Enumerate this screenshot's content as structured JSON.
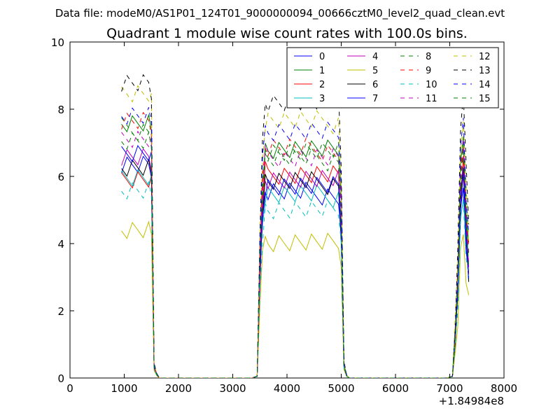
{
  "chart_data": {
    "type": "line",
    "suptitle": "Data file: modeM0/AS1P01_124T01_9000000094_00666cztM0_level2_quad_clean.evt",
    "title": "Quadrant 1 module wise count rates with 100.0s bins.",
    "xlabel": "",
    "ylabel": "",
    "x_offset_label": "+1.84984e8",
    "xlim": [
      0,
      8000
    ],
    "ylim": [
      0,
      10
    ],
    "xticks": [
      0,
      1000,
      2000,
      3000,
      4000,
      5000,
      6000,
      7000,
      8000
    ],
    "yticks": [
      0,
      2,
      4,
      6,
      8,
      10
    ],
    "grid": false,
    "legend_position": "top-right",
    "legend_columns": 4,
    "base_x": [
      950,
      1050,
      1150,
      1250,
      1350,
      1450,
      1500,
      1550,
      1600,
      1650,
      1750,
      1850,
      1950,
      2050,
      2150,
      2250,
      2350,
      2450,
      2550,
      2650,
      2750,
      2850,
      2950,
      3050,
      3150,
      3250,
      3350,
      3450,
      3500,
      3550,
      3600,
      3650,
      3750,
      3850,
      3950,
      4050,
      4150,
      4250,
      4350,
      4450,
      4550,
      4650,
      4750,
      4850,
      4950,
      5000,
      5050,
      5100,
      5150,
      5250,
      5350,
      5450,
      5550,
      5650,
      5750,
      5850,
      5950,
      6050,
      6150,
      6250,
      6350,
      6450,
      6550,
      6650,
      6750,
      6850,
      6950,
      7050,
      7100,
      7150,
      7200,
      7250,
      7300,
      7350
    ],
    "series": [
      {
        "name": "0",
        "color": "#0000ff",
        "dash": "solid",
        "level": 6.3,
        "late": 5.5
      },
      {
        "name": "1",
        "color": "#008000",
        "dash": "solid",
        "level": 7.6,
        "late": 6.8
      },
      {
        "name": "2",
        "color": "#ff0000",
        "dash": "solid",
        "level": 6.0,
        "late": 6.1
      },
      {
        "name": "3",
        "color": "#00bfbf",
        "dash": "solid",
        "level": 5.9,
        "late": 5.4
      },
      {
        "name": "4",
        "color": "#bf00bf",
        "dash": "solid",
        "level": 6.6,
        "late": 5.9
      },
      {
        "name": "5",
        "color": "#bfbf00",
        "dash": "solid",
        "level": 4.5,
        "late": 4.1
      },
      {
        "name": "6",
        "color": "#000000",
        "dash": "solid",
        "level": 6.2,
        "late": 5.8
      },
      {
        "name": "7",
        "color": "#0000ff",
        "dash": "solid",
        "level": 6.7,
        "late": 5.7
      },
      {
        "name": "8",
        "color": "#008000",
        "dash": "dashed",
        "level": 7.4,
        "late": 6.8
      },
      {
        "name": "9",
        "color": "#ff0000",
        "dash": "dashed",
        "level": 7.6,
        "late": 6.8
      },
      {
        "name": "10",
        "color": "#00bfbf",
        "dash": "dashed",
        "level": 5.6,
        "late": 5.0
      },
      {
        "name": "11",
        "color": "#bf00bf",
        "dash": "dashed",
        "level": 7.2,
        "late": 6.6
      },
      {
        "name": "12",
        "color": "#bfbf00",
        "dash": "dashed",
        "level": 8.4,
        "late": 7.6
      },
      {
        "name": "13",
        "color": "#000000",
        "dash": "dashed",
        "level": 8.8,
        "late": 8.2
      },
      {
        "name": "14",
        "color": "#0000ff",
        "dash": "dashed",
        "level": 7.9,
        "late": 7.4
      },
      {
        "name": "15",
        "color": "#008000",
        "dash": "dashed",
        "level": 7.0,
        "late": 6.5
      }
    ]
  }
}
